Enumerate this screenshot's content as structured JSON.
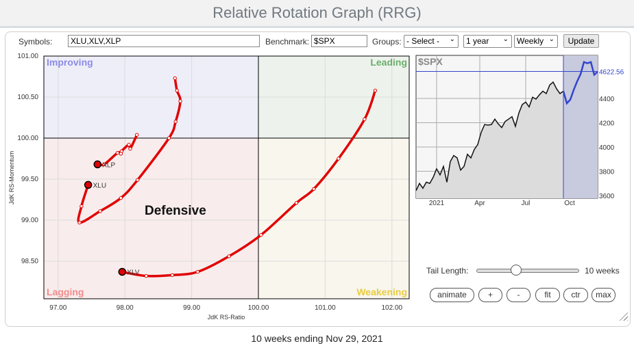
{
  "title": "Relative Rotation Graph (RRG)",
  "controls": {
    "symbols_label": "Symbols:",
    "symbols_value": "XLU,XLV,XLP",
    "benchmark_label": "Benchmark:",
    "benchmark_value": "$SPX",
    "groups_label": "Groups:",
    "groups_value": "- Select -",
    "period_value": "1 year",
    "interval_value": "Weekly",
    "update_label": "Update"
  },
  "rrg": {
    "quadrants": {
      "improving": "Improving",
      "leading": "Leading",
      "lagging": "Lagging",
      "weakening": "Weakening"
    },
    "quadrant_colors": {
      "improving": "#eeeef8",
      "leading": "#edf3ec",
      "lagging": "#f8ecec",
      "weakening": "#f9f6ee"
    },
    "label_colors": {
      "improving": "#8c8ce6",
      "leading": "#6aae6a",
      "lagging": "#f28c8c",
      "weakening": "#e8cc40"
    },
    "annotation": "Defensive",
    "xlabel": "JdK RS-Ratio",
    "ylabel": "JdK RS-Momentum",
    "x_ticks": [
      "97.00",
      "98.00",
      "99.00",
      "100.00",
      "101.00",
      "102.00"
    ],
    "y_ticks": [
      "101.00",
      "100.50",
      "100.00",
      "99.50",
      "99.00",
      "98.50"
    ],
    "tail_color": "#e00000",
    "series": [
      {
        "symbol": "XLU",
        "points": [
          [
            98.75,
            100.73
          ],
          [
            98.78,
            100.58
          ],
          [
            98.83,
            100.45
          ],
          [
            98.76,
            100.2
          ],
          [
            98.66,
            100.0
          ],
          [
            98.19,
            99.49
          ],
          [
            97.94,
            99.27
          ],
          [
            97.63,
            99.11
          ],
          [
            97.32,
            98.97
          ],
          [
            97.35,
            99.17
          ],
          [
            97.45,
            99.43
          ]
        ]
      },
      {
        "symbol": "XLV",
        "points": [
          [
            101.75,
            100.58
          ],
          [
            101.59,
            100.23
          ],
          [
            101.2,
            99.75
          ],
          [
            100.83,
            99.38
          ],
          [
            100.57,
            99.21
          ],
          [
            100.04,
            98.82
          ],
          [
            99.56,
            98.56
          ],
          [
            99.09,
            98.37
          ],
          [
            98.71,
            98.33
          ],
          [
            98.32,
            98.32
          ],
          [
            97.96,
            98.37
          ]
        ]
      },
      {
        "symbol": "XLP",
        "points": [
          [
            98.18,
            100.04
          ],
          [
            98.08,
            99.87
          ],
          [
            98.06,
            99.92
          ],
          [
            97.95,
            99.84
          ],
          [
            97.94,
            99.81
          ],
          [
            97.89,
            99.82
          ],
          [
            97.69,
            99.68
          ],
          [
            97.59,
            99.68
          ]
        ]
      }
    ]
  },
  "benchmark_chart": {
    "symbol": "$SPX",
    "last_value": "4622.56",
    "x_labels": [
      "2021",
      "Apr",
      "Jul",
      "Oct"
    ],
    "y_ticks": [
      "4400",
      "4200",
      "4000",
      "3800",
      "3600"
    ],
    "values": [
      3640,
      3700,
      3660,
      3710,
      3700,
      3750,
      3820,
      3770,
      3840,
      3710,
      3880,
      3930,
      3910,
      3810,
      3840,
      3940,
      3910,
      3980,
      4020,
      4120,
      4185,
      4180,
      4185,
      4230,
      4190,
      4160,
      4210,
      4230,
      4250,
      4170,
      4280,
      4350,
      4370,
      4330,
      4410,
      4395,
      4430,
      4460,
      4440,
      4510,
      4535,
      4480,
      4440,
      4460,
      4360,
      4390,
      4470,
      4540,
      4600,
      4700,
      4690,
      4700,
      4595,
      4620
    ],
    "highlight_weeks": 10
  },
  "tail": {
    "label": "Tail Length:",
    "value_label": "10 weeks",
    "fraction": 0.33
  },
  "buttons": {
    "animate": "animate",
    "plus": "+",
    "minus": "-",
    "fit": "fit",
    "ctr": "ctr",
    "max": "max"
  },
  "footer": "10 weeks ending Nov 29, 2021"
}
